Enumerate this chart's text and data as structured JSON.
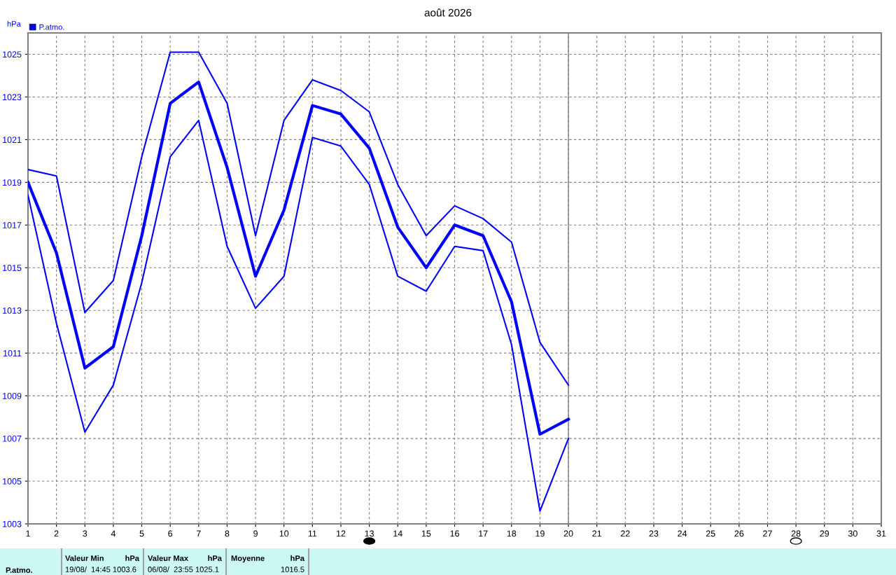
{
  "chart_data": {
    "type": "line",
    "title": "août 2026",
    "ylabel": "hPa",
    "x": [
      1,
      2,
      3,
      4,
      5,
      6,
      7,
      8,
      9,
      10,
      11,
      12,
      13,
      14,
      15,
      16,
      17,
      18,
      19,
      20
    ],
    "series": [
      {
        "name": "P.atmo.",
        "color": "#0000ff",
        "values": [
          1019.0,
          1015.7,
          1010.3,
          1011.3,
          1016.5,
          1022.7,
          1023.7,
          1019.7,
          1014.6,
          1017.7,
          1022.6,
          1022.2,
          1020.6,
          1016.9,
          1015.0,
          1017.0,
          1016.5,
          1013.4,
          1007.2,
          1007.9
        ]
      },
      {
        "color": "#0000ff",
        "values": [
          1019.6,
          1019.3,
          1012.9,
          1014.4,
          1020.2,
          1025.1,
          1025.1,
          1022.7,
          1016.5,
          1021.9,
          1023.8,
          1023.3,
          1022.3,
          1018.9,
          1016.5,
          1017.9,
          1017.3,
          1016.2,
          1011.5,
          1009.5
        ]
      },
      {
        "color": "#0000ff",
        "values": [
          1018.4,
          1012.4,
          1007.3,
          1009.5,
          1014.3,
          1020.2,
          1021.9,
          1016.0,
          1013.1,
          1014.6,
          1021.1,
          1020.7,
          1018.9,
          1014.6,
          1013.9,
          1016.0,
          1015.8,
          1011.4,
          1003.6,
          1007.0
        ]
      }
    ],
    "xlim": [
      1,
      31
    ],
    "xticks": [
      1,
      2,
      3,
      4,
      5,
      6,
      7,
      8,
      9,
      10,
      11,
      12,
      13,
      14,
      15,
      16,
      17,
      18,
      19,
      20,
      21,
      22,
      23,
      24,
      25,
      26,
      27,
      28,
      29,
      30,
      31
    ],
    "ylim": [
      1003,
      1026
    ],
    "yticks": [
      1003,
      1005,
      1007,
      1009,
      1011,
      1013,
      1015,
      1017,
      1019,
      1021,
      1023,
      1025
    ],
    "ref_lines": [
      {
        "axis": "x",
        "value": 20,
        "color": "#808080",
        "line_style": "solid"
      }
    ],
    "grid": true,
    "legend": "top left",
    "marker": "none",
    "line_style": "solid",
    "annotations": [
      "P.atmo.",
      "Valeur Min",
      "hPa",
      "19/08/  14:45 1003.6",
      "Valeur Max",
      "hPa",
      "06/08/  23:55 1025.1",
      "Moyenne",
      "hPa",
      "1016.5"
    ]
  }
}
